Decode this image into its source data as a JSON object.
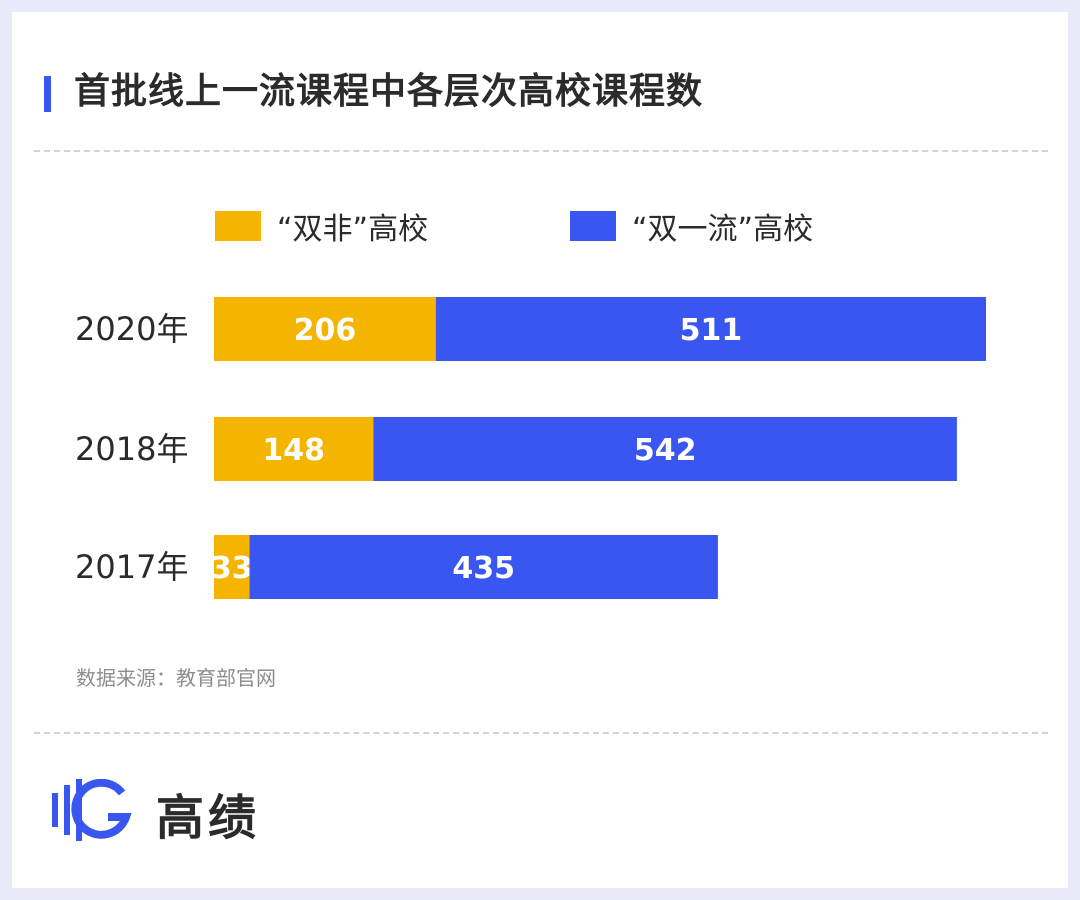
{
  "title": "首批线上一流课程中各层次高校课程数",
  "source": "数据来源：教育部官网",
  "brand": "高绩",
  "colors": {
    "accent": "#3a56f0",
    "series_a": "#f5b400",
    "series_b": "#3a56f0"
  },
  "chart_data": {
    "type": "bar",
    "orientation": "horizontal",
    "stacked": true,
    "categories": [
      "2020年",
      "2018年",
      "2017年"
    ],
    "series": [
      {
        "name": "“双非”高校",
        "values": [
          206,
          148,
          33
        ],
        "color": "#f5b400"
      },
      {
        "name": "“双一流”高校",
        "values": [
          511,
          542,
          435
        ],
        "color": "#3a56f0"
      }
    ],
    "xlim": [
      0,
      717
    ],
    "grid": false,
    "legend": "top",
    "data_labels": true
  }
}
